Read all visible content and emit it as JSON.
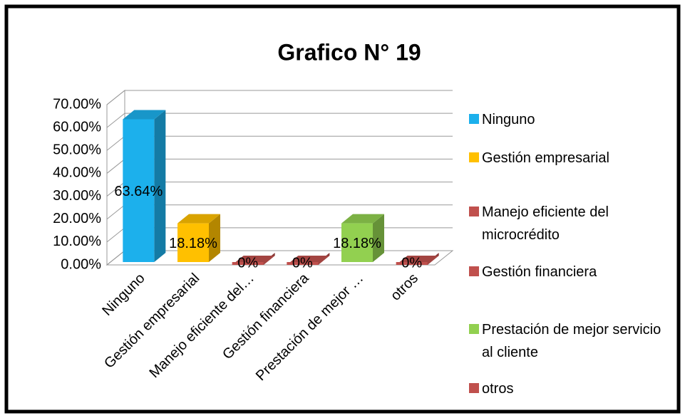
{
  "chart_data": {
    "type": "bar3d",
    "title": "Grafico N° 19",
    "categories": [
      "Ninguno",
      "Gestión empresarial",
      "Manejo eficiente del…",
      "Gestión financiera",
      "Prestación de mejor …",
      "otros"
    ],
    "values": [
      63.64,
      18.18,
      0,
      0,
      18.18,
      0
    ],
    "value_labels": [
      "63.64%",
      "18.18%",
      "0%",
      "0%",
      "18.18%",
      "0%"
    ],
    "colors": [
      "#1cb0ec",
      "#ffc000",
      "#c0504d",
      "#c0504d",
      "#92d050",
      "#c0504d"
    ],
    "legend": [
      "Ninguno",
      "Gestión empresarial",
      "Manejo eficiente del microcrédito",
      "Gestión financiera",
      "Prestación de mejor servicio al cliente",
      "otros"
    ],
    "ylim": [
      0,
      70
    ],
    "yticks": [
      {
        "value": 0,
        "label": "0.00%"
      },
      {
        "value": 10,
        "label": "10.00%"
      },
      {
        "value": 20,
        "label": "20.00%"
      },
      {
        "value": 30,
        "label": "30.00%"
      },
      {
        "value": 40,
        "label": "40.00%"
      },
      {
        "value": 50,
        "label": "50.00%"
      },
      {
        "value": 60,
        "label": "60.00%"
      },
      {
        "value": 70,
        "label": "70.00%"
      }
    ],
    "grid": true
  }
}
